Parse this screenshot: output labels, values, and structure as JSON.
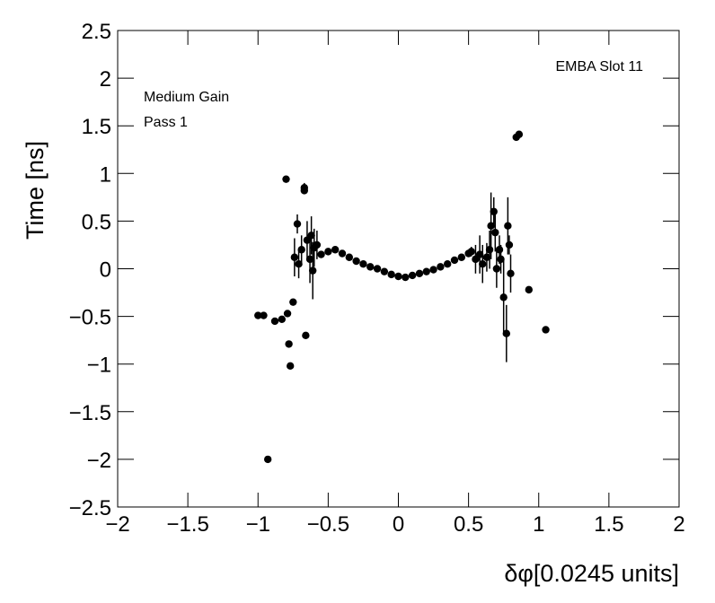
{
  "chart_data": {
    "type": "scatter",
    "annotations": [
      "EMBA Slot 11",
      "Medium Gain",
      "Pass 1"
    ],
    "xlabel": "δφ[0.0245 units]",
    "ylabel": "Time [ns]",
    "color": "#000000",
    "xlim": [
      -2,
      2
    ],
    "ylim": [
      -2.5,
      2.5
    ],
    "xticks": [
      {
        "value": -2,
        "label": "−2"
      },
      {
        "value": -1.5,
        "label": "−1.5"
      },
      {
        "value": -1,
        "label": "−1"
      },
      {
        "value": -0.5,
        "label": "−0.5"
      },
      0,
      0.5,
      1,
      1.5,
      2
    ],
    "yticks": [
      {
        "value": -2.5,
        "label": "−2.5"
      },
      {
        "value": -2,
        "label": "−2"
      },
      {
        "value": -1.5,
        "label": "−1.5"
      },
      {
        "value": -1,
        "label": "−1"
      },
      {
        "value": -0.5,
        "label": "−0.5"
      },
      0,
      0.5,
      1,
      1.5,
      2,
      2.5
    ],
    "x": [
      -1.0,
      -0.96,
      -0.93,
      -0.88,
      -0.83,
      -0.8,
      -0.79,
      -0.78,
      -0.77,
      -0.75,
      -0.74,
      -0.72,
      -0.71,
      -0.69,
      -0.67,
      -0.67,
      -0.66,
      -0.65,
      -0.63,
      -0.62,
      -0.61,
      -0.6,
      -0.58,
      -0.55,
      -0.5,
      -0.45,
      -0.4,
      -0.35,
      -0.3,
      -0.25,
      -0.2,
      -0.15,
      -0.1,
      -0.05,
      0,
      0.05,
      0.1,
      0.15,
      0.2,
      0.25,
      0.3,
      0.35,
      0.4,
      0.45,
      0.5,
      0.52,
      0.55,
      0.58,
      0.6,
      0.63,
      0.65,
      0.66,
      0.68,
      0.69,
      0.7,
      0.72,
      0.73,
      0.75,
      0.77,
      0.78,
      0.79,
      0.8,
      0.84,
      0.86,
      0.93,
      1.05
    ],
    "y": [
      -0.49,
      -0.49,
      -2.0,
      -0.55,
      -0.53,
      0.94,
      -0.47,
      -0.79,
      -1.02,
      -0.35,
      0.12,
      0.47,
      0.05,
      0.2,
      0.85,
      0.82,
      -0.7,
      0.3,
      0.1,
      0.35,
      -0.02,
      0.22,
      0.25,
      0.15,
      0.18,
      0.2,
      0.16,
      0.12,
      0.08,
      0.05,
      0.02,
      0.0,
      -0.03,
      -0.06,
      -0.08,
      -0.09,
      -0.07,
      -0.05,
      -0.03,
      -0.01,
      0.02,
      0.05,
      0.09,
      0.12,
      0.16,
      0.18,
      0.1,
      0.15,
      0.05,
      0.12,
      0.2,
      0.45,
      0.6,
      0.38,
      0.0,
      0.2,
      0.1,
      -0.3,
      -0.68,
      0.45,
      0.25,
      -0.05,
      1.38,
      1.41,
      -0.22,
      -0.64
    ],
    "errors": [
      null,
      null,
      null,
      null,
      null,
      null,
      null,
      null,
      null,
      null,
      0.2,
      0.1,
      0.15,
      0.15,
      0.05,
      null,
      null,
      0.2,
      0.25,
      0.2,
      0.3,
      0.2,
      0.15,
      0.03,
      0.03,
      0.03,
      0.02,
      0.02,
      0.02,
      0.02,
      0.02,
      0.02,
      0.02,
      0.02,
      0.02,
      0.02,
      0.02,
      0.02,
      0.02,
      0.02,
      0.02,
      0.02,
      0.02,
      0.03,
      0.03,
      0.05,
      0.15,
      0.2,
      0.2,
      0.15,
      0.2,
      0.35,
      0.15,
      0.2,
      0.2,
      0.15,
      0.15,
      0.4,
      0.3,
      0.3,
      0.1,
      0.2,
      null,
      null,
      null,
      null
    ]
  }
}
